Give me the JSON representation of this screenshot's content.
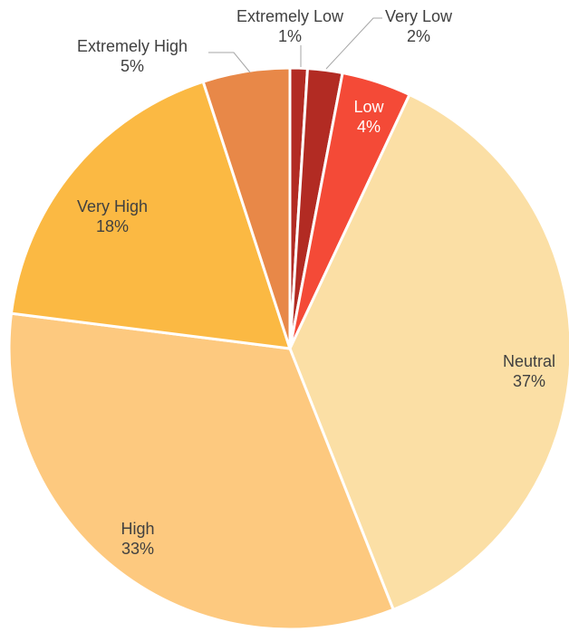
{
  "chart_data": {
    "type": "pie",
    "title": "",
    "legend": "none",
    "slices": [
      {
        "label": "Extremely Low",
        "value": 1,
        "display": "1%",
        "color": "#b22b23"
      },
      {
        "label": "Very Low",
        "value": 2,
        "display": "2%",
        "color": "#b22b23"
      },
      {
        "label": "Low",
        "value": 4,
        "display": "4%",
        "color": "#f44a37"
      },
      {
        "label": "Neutral",
        "value": 37,
        "display": "37%",
        "color": "#fbdfa5"
      },
      {
        "label": "High",
        "value": 33,
        "display": "33%",
        "color": "#fdc97f"
      },
      {
        "label": "Very High",
        "value": 18,
        "display": "18%",
        "color": "#fbb943"
      },
      {
        "label": "Extremely High",
        "value": 5,
        "display": "5%",
        "color": "#e88848"
      }
    ]
  }
}
